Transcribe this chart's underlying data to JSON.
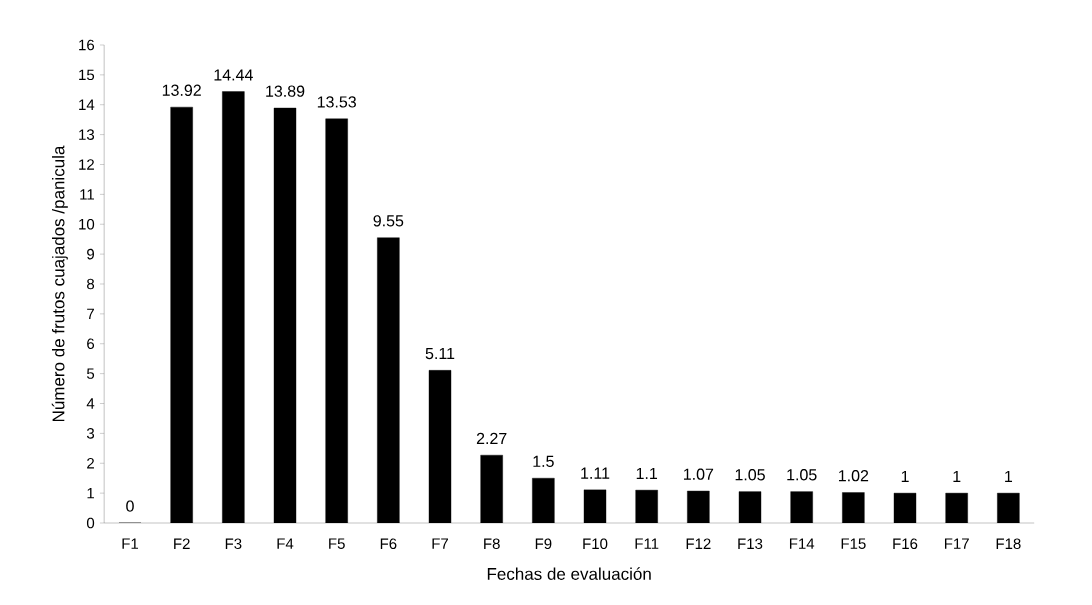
{
  "chart_data": {
    "type": "bar",
    "xlabel": "Fechas de evaluación",
    "ylabel": "Número de frutos cuajados /panicula",
    "categories": [
      "F1",
      "F2",
      "F3",
      "F4",
      "F5",
      "F6",
      "F7",
      "F8",
      "F9",
      "F10",
      "F11",
      "F12",
      "F13",
      "F14",
      "F15",
      "F16",
      "F17",
      "F18"
    ],
    "values": [
      0,
      13.92,
      14.44,
      13.89,
      13.53,
      9.55,
      5.11,
      2.27,
      1.5,
      1.11,
      1.1,
      1.07,
      1.05,
      1.05,
      1.02,
      1,
      1,
      1
    ],
    "color": "#000000",
    "ylim": [
      0,
      16
    ],
    "yticks": [
      0,
      1,
      2,
      3,
      4,
      5,
      6,
      7,
      8,
      9,
      10,
      11,
      12,
      13,
      14,
      15,
      16
    ],
    "data_labels": true
  }
}
